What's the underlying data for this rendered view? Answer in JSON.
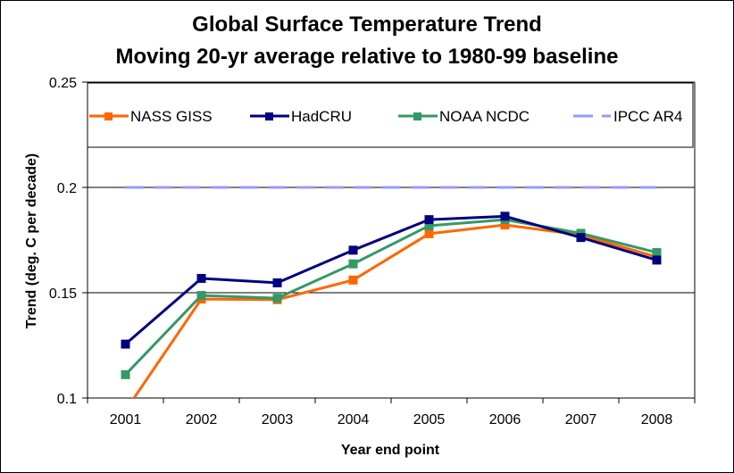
{
  "chart_data": {
    "type": "line",
    "title": "Global Surface Temperature Trend",
    "subtitle": "Moving 20-yr average relative to 1980-99 baseline",
    "xlabel": "Year end point",
    "ylabel": "Trend (deg. C per decade)",
    "categories": [
      "2001",
      "2002",
      "2003",
      "2004",
      "2005",
      "2006",
      "2007",
      "2008"
    ],
    "ylim": [
      0.1,
      0.25
    ],
    "yticks": [
      0.1,
      0.15,
      0.2,
      0.25
    ],
    "ytick_labels": [
      "0.1",
      "0.15",
      "0.2",
      "0.25"
    ],
    "grid": "horizontal",
    "legend_position": "top",
    "series": [
      {
        "name": "NASS GISS",
        "color": "#ff6600",
        "marker": "square",
        "dash": "solid",
        "values": [
          0.094,
          0.147,
          0.1467,
          0.156,
          0.178,
          0.1822,
          0.1774,
          0.167
        ]
      },
      {
        "name": "HadCRU",
        "color": "#000080",
        "marker": "square",
        "dash": "solid",
        "values": [
          0.1256,
          0.1568,
          0.1547,
          0.1702,
          0.1847,
          0.1863,
          0.1762,
          0.1655
        ]
      },
      {
        "name": "NOAA NCDC",
        "color": "#339966",
        "marker": "square",
        "dash": "solid",
        "values": [
          0.1111,
          0.1487,
          0.1474,
          0.1637,
          0.1818,
          0.1847,
          0.1782,
          0.1691
        ]
      },
      {
        "name": "IPCC AR4",
        "color": "#9999ff",
        "marker": "none",
        "dash": "dashed",
        "values": [
          0.2,
          0.2,
          0.2,
          0.2,
          0.2,
          0.2,
          0.2,
          0.2
        ]
      }
    ]
  }
}
